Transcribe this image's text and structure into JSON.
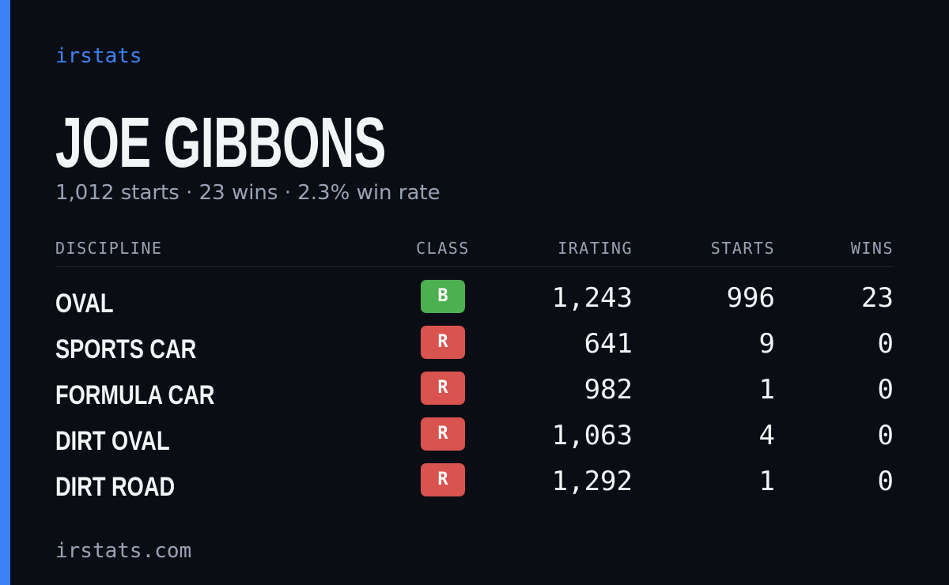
{
  "brand": "irstats",
  "driver": {
    "name": "JOE GIBBONS",
    "summary": "1,012 starts · 23 wins · 2.3% win rate"
  },
  "table": {
    "headers": [
      "DISCIPLINE",
      "CLASS",
      "IRATING",
      "STARTS",
      "WINS"
    ],
    "rows": [
      {
        "discipline": "OVAL",
        "class": "B",
        "class_color": "#4caf50",
        "irating": "1,243",
        "starts": "996",
        "wins": "23"
      },
      {
        "discipline": "SPORTS CAR",
        "class": "R",
        "class_color": "#d9534f",
        "irating": "641",
        "starts": "9",
        "wins": "0"
      },
      {
        "discipline": "FORMULA CAR",
        "class": "R",
        "class_color": "#d9534f",
        "irating": "982",
        "starts": "1",
        "wins": "0"
      },
      {
        "discipline": "DIRT OVAL",
        "class": "R",
        "class_color": "#d9534f",
        "irating": "1,063",
        "starts": "4",
        "wins": "0"
      },
      {
        "discipline": "DIRT ROAD",
        "class": "R",
        "class_color": "#d9534f",
        "irating": "1,292",
        "starts": "1",
        "wins": "0"
      }
    ]
  },
  "footer": "irstats.com"
}
